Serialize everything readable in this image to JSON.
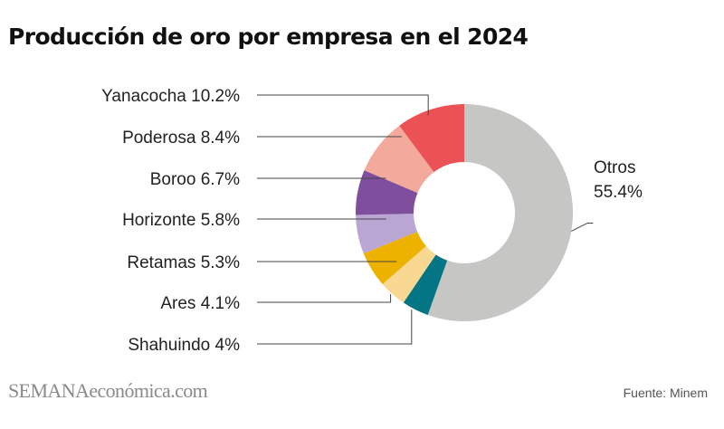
{
  "title": "Producción de oro por empresa en el 2024",
  "brand": {
    "part1": "SEMANA",
    "part2": "económica.com"
  },
  "source": "Fuente: Minem",
  "chart_data": {
    "type": "pie",
    "variant": "donut",
    "title": "Producción de oro por empresa en el 2024",
    "unit": "%",
    "slices": [
      {
        "name": "Otros",
        "value": 55.4,
        "display": "55.4%",
        "color": "#c6c6c5"
      },
      {
        "name": "Shahuindo",
        "value": 4,
        "display": "4%",
        "color": "#047585"
      },
      {
        "name": "Ares",
        "value": 4.1,
        "display": "4.1%",
        "color": "#f9d891"
      },
      {
        "name": "Retamas",
        "value": 5.3,
        "display": "5.3%",
        "color": "#edb200"
      },
      {
        "name": "Horizonte",
        "value": 5.8,
        "display": "5.8%",
        "color": "#baa6d3"
      },
      {
        "name": "Boroo",
        "value": 6.7,
        "display": "6.7%",
        "color": "#7f4f9e"
      },
      {
        "name": "Poderosa",
        "value": 8.4,
        "display": "8.4%",
        "color": "#f3aa9c"
      },
      {
        "name": "Yanacocha",
        "value": 10.2,
        "display": "10.2%",
        "color": "#ea5255"
      }
    ]
  }
}
